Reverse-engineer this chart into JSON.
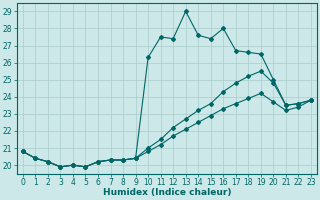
{
  "xlabel": "Humidex (Indice chaleur)",
  "xlim": [
    -0.5,
    23.5
  ],
  "ylim": [
    19.5,
    29.5
  ],
  "xticks": [
    0,
    1,
    2,
    3,
    4,
    5,
    6,
    7,
    8,
    9,
    10,
    11,
    12,
    13,
    14,
    15,
    16,
    17,
    18,
    19,
    20,
    21,
    22,
    23
  ],
  "yticks": [
    20,
    21,
    22,
    23,
    24,
    25,
    26,
    27,
    28,
    29
  ],
  "bg_color": "#cce8e8",
  "grid_color": "#aacccc",
  "line_color": "#006666",
  "line1_y": [
    20.8,
    20.4,
    20.2,
    19.9,
    20.0,
    19.9,
    20.2,
    20.3,
    20.3,
    20.4,
    26.3,
    27.5,
    27.4,
    29.0,
    27.6,
    27.4,
    28.0,
    26.7,
    26.6,
    26.5,
    25.0,
    23.5,
    23.6,
    23.8
  ],
  "line2_y": [
    20.8,
    20.4,
    20.2,
    19.9,
    20.0,
    19.9,
    20.2,
    20.3,
    20.3,
    20.4,
    21.0,
    21.5,
    22.2,
    22.7,
    23.2,
    23.6,
    24.3,
    24.8,
    25.2,
    25.5,
    24.8,
    23.5,
    23.6,
    23.8
  ],
  "line3_y": [
    20.8,
    20.4,
    20.2,
    19.9,
    20.0,
    19.9,
    20.2,
    20.3,
    20.3,
    20.4,
    20.8,
    21.2,
    21.7,
    22.1,
    22.5,
    22.9,
    23.3,
    23.6,
    23.9,
    24.2,
    23.7,
    23.2,
    23.4,
    23.8
  ],
  "marker": "D",
  "markersize": 2.0,
  "linewidth": 0.8,
  "tick_fontsize": 5.5,
  "xlabel_fontsize": 6.5
}
